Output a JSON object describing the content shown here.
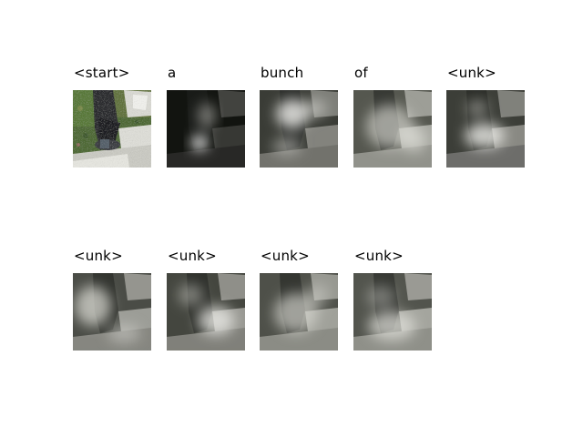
{
  "panels": [
    {
      "title": "<start>",
      "image": "original photo: dark vertical post beside pale stone slabs on grass"
    },
    {
      "title": "a",
      "image": "attention heatmap: dark image, bright spot lower-center"
    },
    {
      "title": "bunch",
      "image": "attention heatmap: bright patch upper-center"
    },
    {
      "title": "of",
      "image": "attention heatmap: broad bright area"
    },
    {
      "title": "<unk>",
      "image": "attention heatmap: bright patch lower-center"
    },
    {
      "title": "<unk>",
      "image": "attention heatmap: bright patch left-center"
    },
    {
      "title": "<unk>",
      "image": "attention heatmap: bright patch lower-right"
    },
    {
      "title": "<unk>",
      "image": "attention heatmap: diffuse brightness"
    },
    {
      "title": "<unk>",
      "image": "attention heatmap: diffuse brightness lower-center"
    }
  ]
}
